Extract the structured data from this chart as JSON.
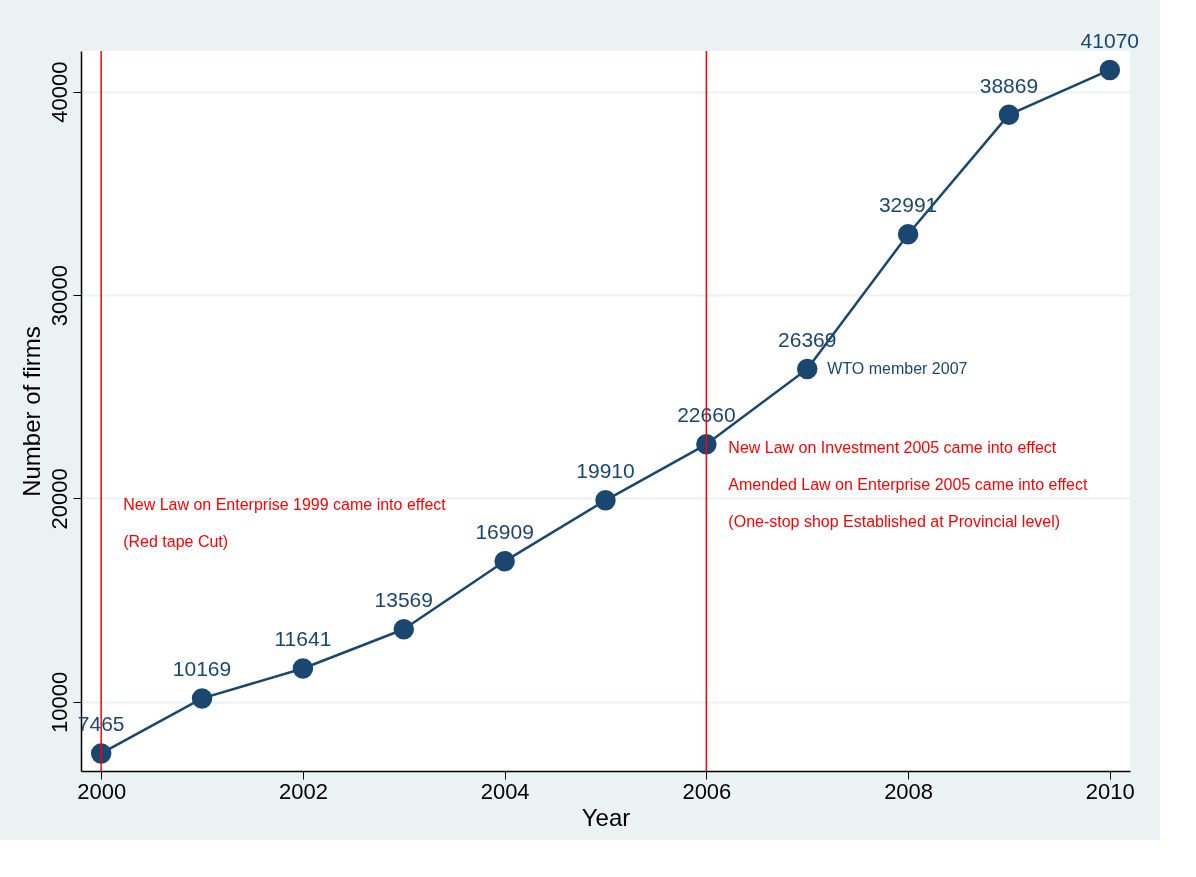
{
  "chart_data": {
    "type": "line",
    "xlabel": "Year",
    "ylabel": "Number of firms",
    "x": [
      2000,
      2001,
      2002,
      2003,
      2004,
      2005,
      2006,
      2007,
      2008,
      2009,
      2010
    ],
    "series": [
      {
        "color": "#1a476f",
        "values": [
          7465,
          10169,
          11641,
          13569,
          16909,
          19910,
          22660,
          26369,
          32991,
          38869,
          41070
        ]
      }
    ],
    "xlim": [
      1999.8,
      2010.2
    ],
    "xticks": [
      2000,
      2002,
      2004,
      2006,
      2008,
      2010
    ],
    "ylim": [
      6600,
      42000
    ],
    "yticks": [
      10000,
      20000,
      30000,
      40000
    ],
    "grid": "y",
    "marker": "circle",
    "line_style": "solid",
    "data_labels": true,
    "ref_lines": [
      {
        "axis": "x",
        "value": 2000,
        "color": "#ff0000",
        "label": "New Law on Enterprise 1999 came into effect\n(Red tape Cut)"
      },
      {
        "axis": "x",
        "value": 2006,
        "color": "#ff0000",
        "label": "New Law on Investment 2005 came into effect\nAmended Law on Enterprise 2005 came into effect\n(One-stop shop Established at Provincial level)"
      }
    ],
    "annotations": [
      {
        "text": "WTO member 2007",
        "x": 2007,
        "y": 26369
      }
    ]
  }
}
